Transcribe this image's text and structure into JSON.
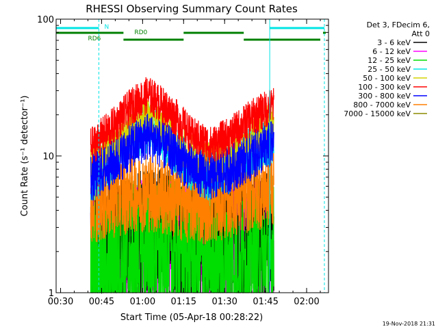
{
  "colors": {
    "background": "#ffffff",
    "axes": "#000000",
    "cyan": "#00e5e5",
    "green_bar": "#008000"
  },
  "chart_data": {
    "type": "line",
    "title": "RHESSI Observing Summary Count Rates",
    "xlabel": "Start Time (05-Apr-18 00:28:22)",
    "ylabel": "Count Rate (s⁻¹ detector⁻¹)",
    "y_scale": "log",
    "ylim": [
      1,
      100
    ],
    "xlim": [
      "00:28:22",
      "02:08:00"
    ],
    "x_ticks": [
      "00:30",
      "00:45",
      "01:00",
      "01:15",
      "01:30",
      "01:45",
      "02:00"
    ],
    "y_ticks": [
      "1",
      "10",
      "100"
    ],
    "grid": false,
    "legend_title": [
      "Det 3, FDecim 6,",
      "Att 0"
    ],
    "legend_position": "right",
    "data_window": [
      "00:41:00",
      "01:48:00"
    ],
    "series": [
      {
        "name": "3 - 6 keV",
        "color": "#000000",
        "x": [
          "00:42",
          "00:50",
          "01:00",
          "01:10",
          "01:20",
          "01:30",
          "01:40",
          "01:47"
        ],
        "values": [
          2.0,
          2.3,
          2.6,
          2.5,
          2.2,
          2.3,
          2.4,
          2.5
        ]
      },
      {
        "name": "6 - 12 keV",
        "color": "#ff00ff",
        "x": [
          "00:42",
          "00:50",
          "01:00",
          "01:10",
          "01:20",
          "01:30",
          "01:40",
          "01:47"
        ],
        "values": [
          1.8,
          2.0,
          2.2,
          2.1,
          1.9,
          2.0,
          2.1,
          2.2
        ]
      },
      {
        "name": "12 - 25 keV",
        "color": "#00dd00",
        "x": [
          "00:42",
          "00:50",
          "01:00",
          "01:10",
          "01:20",
          "01:30",
          "01:40",
          "01:47"
        ],
        "values": [
          1.5,
          1.7,
          1.8,
          1.9,
          1.7,
          1.6,
          1.7,
          1.8
        ]
      },
      {
        "name": "25 - 50 keV",
        "color": "#00e5e5",
        "x": [
          "00:42",
          "00:50",
          "00:57",
          "01:02",
          "01:10",
          "01:18",
          "01:25",
          "01:32",
          "01:40",
          "01:47"
        ],
        "values": [
          7,
          10,
          14,
          16,
          12,
          8,
          7,
          8,
          11,
          13
        ]
      },
      {
        "name": "50 - 100 keV",
        "color": "#d4d400",
        "x": [
          "00:42",
          "00:50",
          "00:57",
          "01:02",
          "01:10",
          "01:18",
          "01:25",
          "01:32",
          "01:40",
          "01:47"
        ],
        "values": [
          9,
          12,
          17,
          19,
          15,
          10,
          9,
          10,
          14,
          17
        ]
      },
      {
        "name": "100 - 300 keV",
        "color": "#ff0000",
        "x": [
          "00:42",
          "00:50",
          "00:57",
          "01:02",
          "01:10",
          "01:18",
          "01:25",
          "01:32",
          "01:40",
          "01:47"
        ],
        "values": [
          12,
          17,
          24,
          28,
          21,
          14,
          12,
          14,
          19,
          23
        ]
      },
      {
        "name": "300 - 800 keV",
        "color": "#0000ff",
        "x": [
          "00:42",
          "00:50",
          "00:57",
          "01:02",
          "01:10",
          "01:18",
          "01:25",
          "01:32",
          "01:40",
          "01:47"
        ],
        "values": [
          7,
          9,
          12,
          14,
          11,
          8,
          7,
          8,
          10,
          12
        ]
      },
      {
        "name": "800 - 7000 keV",
        "color": "#ff7f00",
        "x": [
          "00:42",
          "00:50",
          "00:57",
          "01:02",
          "01:10",
          "01:18",
          "01:25",
          "01:32",
          "01:40",
          "01:47"
        ],
        "values": [
          4.5,
          5.0,
          5.5,
          5.5,
          5.0,
          4.5,
          4.5,
          5.0,
          5.5,
          6.0
        ]
      },
      {
        "name": "7000 - 15000 keV",
        "color": "#8b8b00",
        "x": [
          "00:42",
          "00:50",
          "01:00",
          "01:10",
          "01:20",
          "01:30",
          "01:40",
          "01:47"
        ],
        "values": [
          3.0,
          3.2,
          3.5,
          3.4,
          3.2,
          3.1,
          3.3,
          3.5
        ]
      }
    ],
    "status_bars": [
      {
        "label": "N",
        "color": "#00e5e5",
        "level": 1,
        "segments": [
          [
            "00:28:22",
            "00:44:00"
          ],
          [
            "01:46:30",
            "02:06:30"
          ]
        ]
      },
      {
        "label": "RD0",
        "color": "#008000",
        "level": 2,
        "segments": [
          [
            "00:28:22",
            "00:53:00"
          ],
          [
            "01:15:00",
            "01:37:00"
          ],
          [
            "02:06:00",
            "02:07:00"
          ]
        ]
      },
      {
        "label": "RD6",
        "color": "#008000",
        "level": 3,
        "segments": [
          [
            "00:53:00",
            "01:15:00"
          ],
          [
            "01:37:00",
            "02:05:00"
          ]
        ]
      }
    ],
    "vertical_markers": [
      {
        "time": "00:28:22",
        "color": "#00e5e5",
        "style": "solid"
      },
      {
        "time": "00:44:00",
        "color": "#00e5e5",
        "style": "dashed"
      },
      {
        "time": "01:46:30",
        "color": "#00e5e5",
        "style": "solid"
      },
      {
        "time": "02:06:30",
        "color": "#00e5e5",
        "style": "dashed"
      }
    ]
  },
  "footer": {
    "timestamp": "19-Nov-2018 21:31"
  }
}
